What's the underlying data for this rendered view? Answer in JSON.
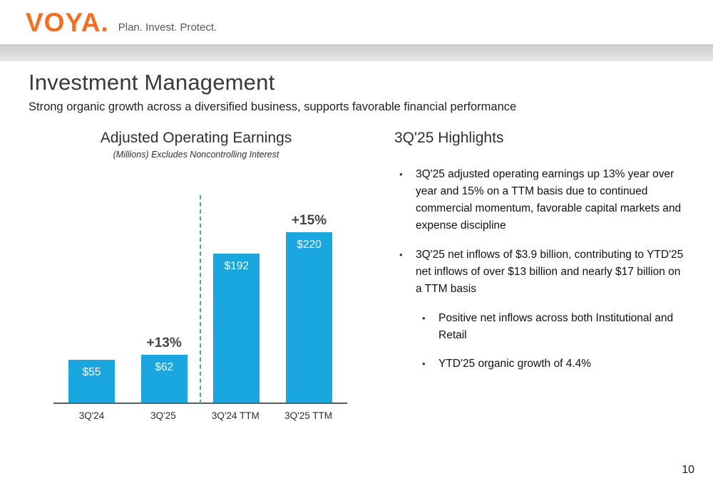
{
  "brand": {
    "logo_text": "VOYA.",
    "tagline": "Plan. Invest. Protect.",
    "logo_color": "#f26f21"
  },
  "slide": {
    "title": "Investment Management",
    "subtitle": "Strong organic growth across a diversified business, supports favorable financial performance",
    "page_number": "10"
  },
  "chart": {
    "title": "Adjusted Operating Earnings",
    "subtitle": "(Millions) Excludes Noncontrolling Interest",
    "bar_color": "#1aa7e0",
    "divider_color": "#4ba79e",
    "value_text_color": "#ffffff"
  },
  "chart_data": {
    "type": "bar",
    "title": "Adjusted Operating Earnings",
    "subtitle": "(Millions) Excludes Noncontrolling Interest",
    "categories": [
      "3Q'24",
      "3Q'25",
      "3Q'24 TTM",
      "3Q'25 TTM"
    ],
    "values": [
      55,
      62,
      192,
      220
    ],
    "value_labels": [
      "$55",
      "$62",
      "$192",
      "$220"
    ],
    "annotations": [
      {
        "category": "3Q'25",
        "label": "+13%"
      },
      {
        "category": "3Q'25 TTM",
        "label": "+15%"
      }
    ],
    "xlabel": "",
    "ylabel": "",
    "ylim": [
      0,
      230
    ],
    "grid": false,
    "legend": false,
    "divider_between": [
      "3Q'25",
      "3Q'24 TTM"
    ]
  },
  "highlights": {
    "title": "3Q'25 Highlights",
    "bullets": [
      {
        "level": 1,
        "text": "3Q'25 adjusted operating earnings up 13% year over year and 15% on a TTM basis due to continued commercial momentum, favorable capital markets and expense discipline"
      },
      {
        "level": 1,
        "text": "3Q'25 net inflows of $3.9 billion, contributing to YTD'25 net inflows of over $13 billion and nearly $17 billion on a TTM basis"
      },
      {
        "level": 2,
        "text": "Positive net inflows across both Institutional and Retail"
      },
      {
        "level": 2,
        "text": "YTD'25 organic growth of 4.4%"
      }
    ]
  }
}
